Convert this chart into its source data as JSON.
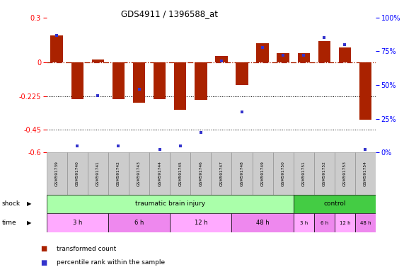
{
  "title": "GDS4911 / 1396588_at",
  "samples": [
    "GSM591739",
    "GSM591740",
    "GSM591741",
    "GSM591742",
    "GSM591743",
    "GSM591744",
    "GSM591745",
    "GSM591746",
    "GSM591747",
    "GSM591748",
    "GSM591749",
    "GSM591750",
    "GSM591751",
    "GSM591752",
    "GSM591753",
    "GSM591754"
  ],
  "red_bars": [
    0.18,
    -0.245,
    0.02,
    -0.245,
    -0.27,
    -0.245,
    -0.315,
    -0.25,
    0.045,
    -0.15,
    0.13,
    0.065,
    0.065,
    0.145,
    0.1,
    -0.38
  ],
  "blue_squares_pct": [
    87,
    5,
    42,
    5,
    47,
    2,
    5,
    15,
    68,
    30,
    78,
    72,
    72,
    85,
    80,
    2
  ],
  "ylim_left": [
    -0.6,
    0.3
  ],
  "ylim_right": [
    0,
    100
  ],
  "yticks_left": [
    0.3,
    0.0,
    -0.225,
    -0.45,
    -0.6
  ],
  "yticks_right": [
    100,
    75,
    50,
    25,
    0
  ],
  "shock_tbi_count": 12,
  "shock_ctrl_count": 4,
  "time_groups_tbi": [
    {
      "label": "3 h",
      "count": 3
    },
    {
      "label": "6 h",
      "count": 3
    },
    {
      "label": "12 h",
      "count": 3
    },
    {
      "label": "48 h",
      "count": 3
    }
  ],
  "time_groups_ctrl": [
    {
      "label": "3 h",
      "count": 1
    },
    {
      "label": "6 h",
      "count": 1
    },
    {
      "label": "12 h",
      "count": 1
    },
    {
      "label": "48 h",
      "count": 1
    }
  ],
  "bar_color": "#AA2200",
  "square_color": "#3333CC",
  "tbi_shock_color": "#AAFFAA",
  "ctrl_shock_color": "#44CC44",
  "time_color_light": "#FFAAFF",
  "time_color_dark": "#EE88EE",
  "sample_box_color": "#CCCCCC",
  "bg_color": "#FFFFFF"
}
